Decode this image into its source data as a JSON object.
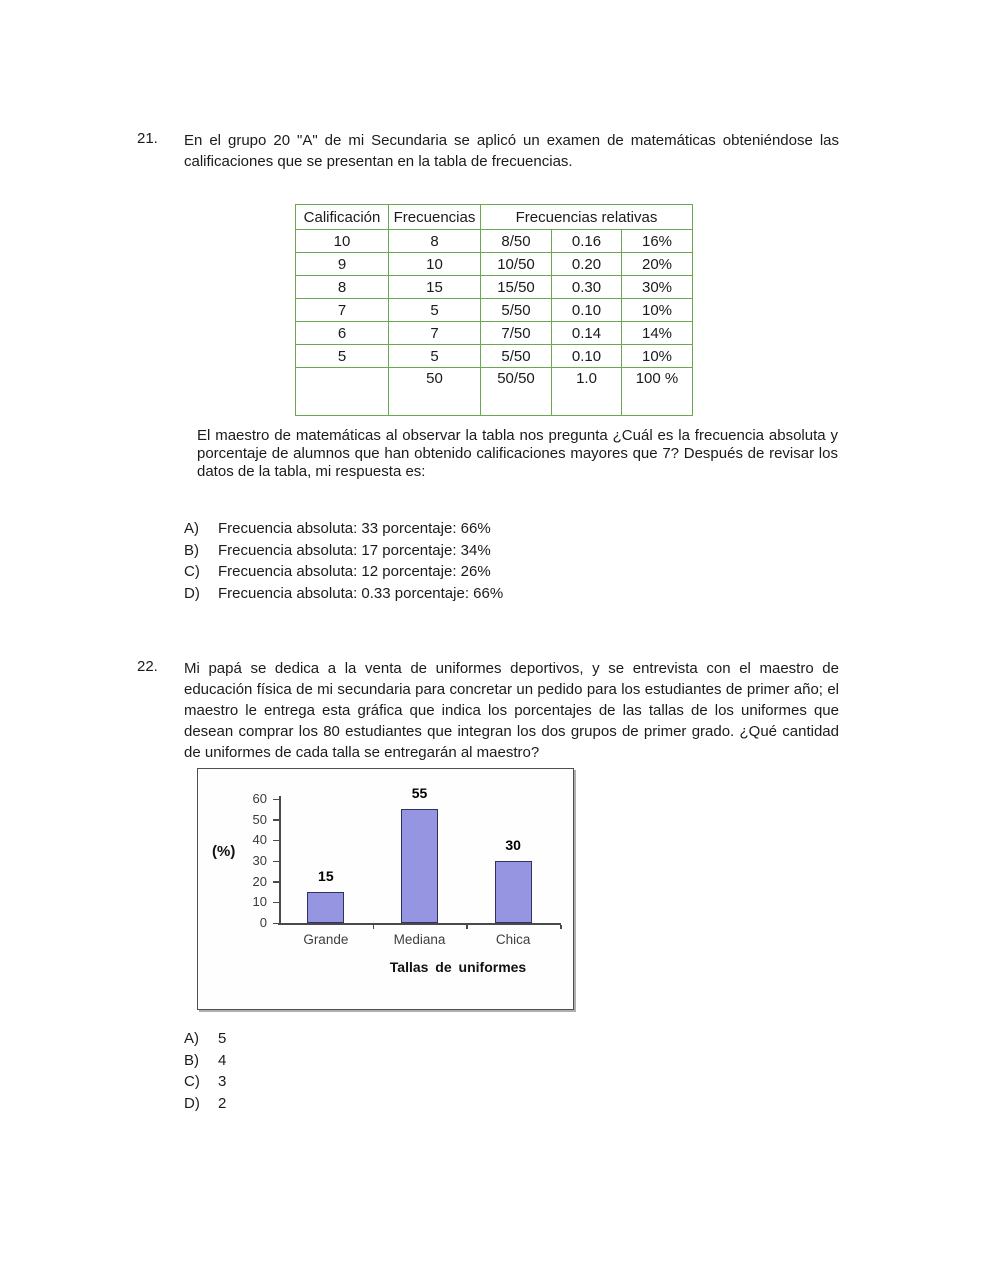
{
  "q21": {
    "number": "21.",
    "prompt": "En el grupo 20 \"A\" de mi Secundaria se aplicó un examen de matemáticas obteniéndose las calificaciones que se presentan en la tabla de frecuencias.",
    "table": {
      "border_color": "#6aa84f",
      "headers": [
        "Calificación",
        "Frecuencias",
        "Frecuencias relativas"
      ],
      "rows": [
        [
          "10",
          "8",
          "8/50",
          "0.16",
          "16%"
        ],
        [
          "9",
          "10",
          "10/50",
          "0.20",
          "20%"
        ],
        [
          "8",
          "15",
          "15/50",
          "0.30",
          "30%"
        ],
        [
          "7",
          "5",
          "5/50",
          "0.10",
          "10%"
        ],
        [
          "6",
          "7",
          "7/50",
          "0.14",
          "14%"
        ],
        [
          "5",
          "5",
          "5/50",
          "0.10",
          "10%"
        ],
        [
          "",
          "50",
          "50/50",
          "1.0",
          "100 %"
        ]
      ]
    },
    "followup": "El maestro de matemáticas al observar la tabla nos pregunta ¿Cuál es la frecuencia absoluta y porcentaje de alumnos que han obtenido calificaciones mayores que 7? Después de revisar los datos de la tabla, mi respuesta es:",
    "options": [
      {
        "letter": "A)",
        "text": "Frecuencia absoluta: 33 porcentaje: 66%"
      },
      {
        "letter": "B)",
        "text": "Frecuencia absoluta: 17 porcentaje: 34%"
      },
      {
        "letter": "C)",
        "text": "Frecuencia absoluta: 12 porcentaje: 26%"
      },
      {
        "letter": "D)",
        "text": "Frecuencia absoluta: 0.33 porcentaje: 66%"
      }
    ]
  },
  "q22": {
    "number": "22.",
    "prompt": "Mi papá se dedica a la venta de uniformes deportivos, y se entrevista con el maestro de educación física de mi secundaria para concretar un pedido para los estudiantes de primer año; el maestro le entrega esta gráfica que indica los porcentajes de las tallas de los uniformes que desean comprar los 80 estudiantes que integran los dos grupos de primer grado. ¿Qué cantidad de uniformes de cada talla se entregarán al maestro?",
    "options": [
      {
        "letter": "A)",
        "text": "5"
      },
      {
        "letter": "B)",
        "text": "4"
      },
      {
        "letter": "C)",
        "text": "3"
      },
      {
        "letter": "D)",
        "text": "2"
      }
    ]
  },
  "chart_data": {
    "type": "bar",
    "categories": [
      "Grande",
      "Mediana",
      "Chica"
    ],
    "values": [
      15,
      55,
      30
    ],
    "data_labels": [
      "15",
      "55",
      "30"
    ],
    "title": "Tallas de uniformes",
    "ylabel": "(%)",
    "yticks": [
      0,
      10,
      20,
      30,
      40,
      50,
      60
    ],
    "ylim": [
      0,
      60
    ],
    "grid": false,
    "legend": "none",
    "bar_color": "#9595e2",
    "bar_border_color": "#31315e"
  }
}
